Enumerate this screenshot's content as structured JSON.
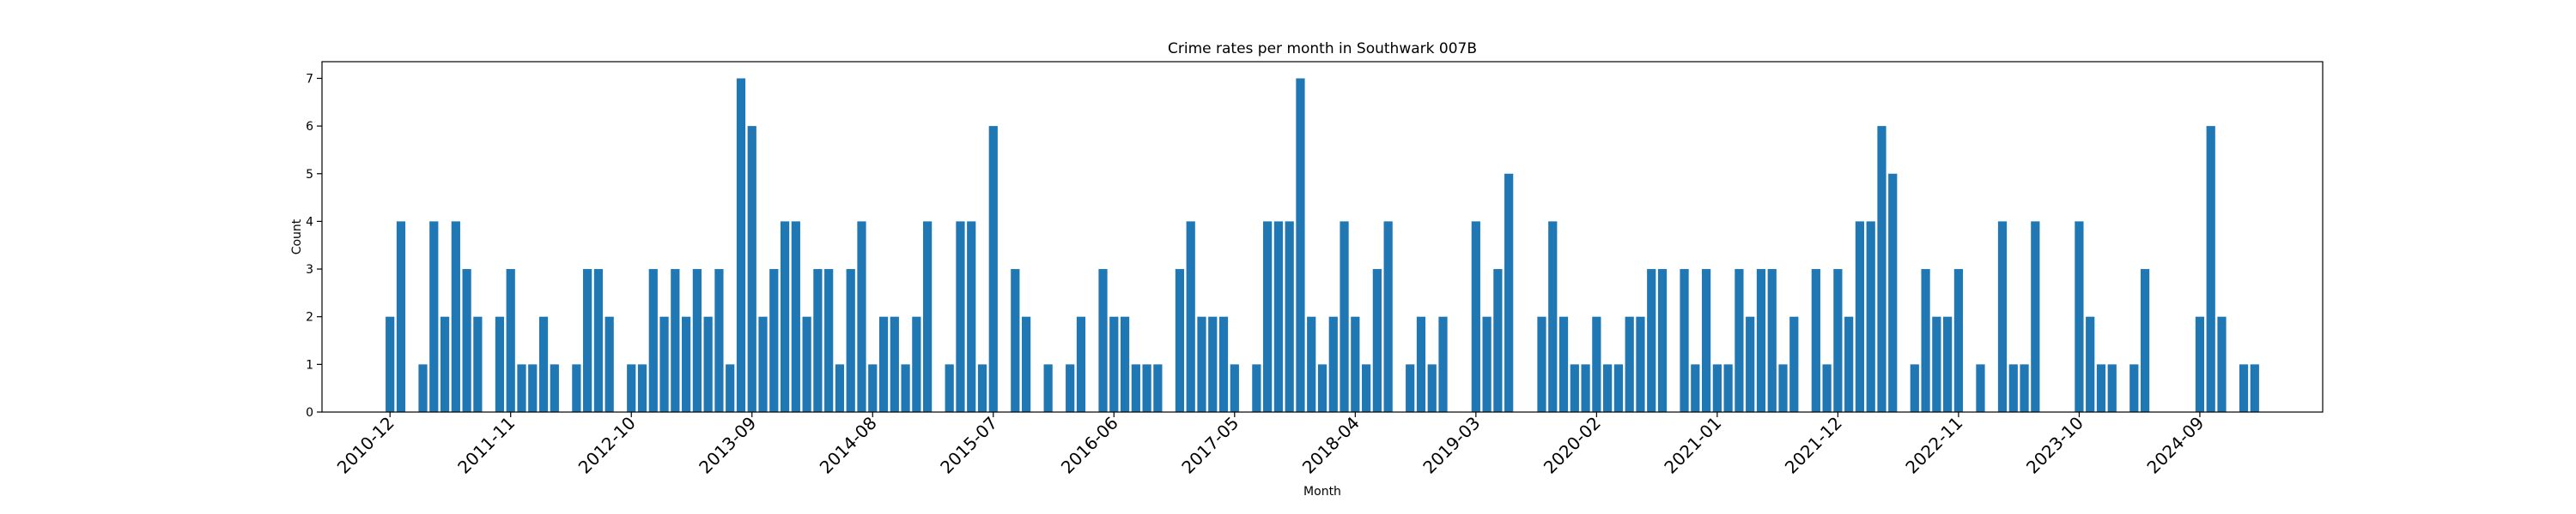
{
  "chart_data": {
    "type": "bar",
    "title": "Crime rates per month in Southwark 007B",
    "xlabel": "Month",
    "ylabel": "Count",
    "ylim": [
      0,
      7.35
    ],
    "y_ticks": [
      0,
      1,
      2,
      3,
      4,
      5,
      6,
      7
    ],
    "x_tick_labels": [
      "2010-12",
      "2011-11",
      "2012-10",
      "2013-09",
      "2014-08",
      "2015-07",
      "2016-06",
      "2017-05",
      "2018-04",
      "2019-03",
      "2020-02",
      "2021-01",
      "2021-12",
      "2022-11",
      "2023-10",
      "2024-09"
    ],
    "x_tick_indices": [
      0,
      11,
      22,
      33,
      44,
      55,
      66,
      77,
      88,
      99,
      110,
      121,
      132,
      143,
      154,
      165
    ],
    "bar_color": "#1f77b4",
    "grid": false,
    "legend": "none",
    "categories": [
      "2010-12",
      "2011-01",
      "2011-02",
      "2011-03",
      "2011-04",
      "2011-05",
      "2011-06",
      "2011-07",
      "2011-08",
      "2011-09",
      "2011-10",
      "2011-11",
      "2011-12",
      "2012-01",
      "2012-02",
      "2012-03",
      "2012-04",
      "2012-05",
      "2012-06",
      "2012-07",
      "2012-08",
      "2012-09",
      "2012-10",
      "2012-11",
      "2012-12",
      "2013-01",
      "2013-02",
      "2013-03",
      "2013-04",
      "2013-05",
      "2013-06",
      "2013-07",
      "2013-08",
      "2013-09",
      "2013-10",
      "2013-11",
      "2013-12",
      "2014-01",
      "2014-02",
      "2014-03",
      "2014-04",
      "2014-05",
      "2014-06",
      "2014-07",
      "2014-08",
      "2014-09",
      "2014-10",
      "2014-11",
      "2014-12",
      "2015-01",
      "2015-02",
      "2015-03",
      "2015-04",
      "2015-05",
      "2015-06",
      "2015-07",
      "2015-08",
      "2015-09",
      "2015-10",
      "2015-11",
      "2015-12",
      "2016-01",
      "2016-02",
      "2016-03",
      "2016-04",
      "2016-05",
      "2016-06",
      "2016-07",
      "2016-08",
      "2016-09",
      "2016-10",
      "2016-11",
      "2016-12",
      "2017-01",
      "2017-02",
      "2017-03",
      "2017-04",
      "2017-05",
      "2017-06",
      "2017-07",
      "2017-08",
      "2017-09",
      "2017-10",
      "2017-11",
      "2017-12",
      "2018-01",
      "2018-02",
      "2018-03",
      "2018-04",
      "2018-05",
      "2018-06",
      "2018-07",
      "2018-08",
      "2018-09",
      "2018-10",
      "2018-11",
      "2018-12",
      "2019-01",
      "2019-02",
      "2019-03",
      "2019-04",
      "2019-05",
      "2019-06",
      "2019-07",
      "2019-08",
      "2019-09",
      "2019-10",
      "2019-11",
      "2019-12",
      "2020-01",
      "2020-02",
      "2020-03",
      "2020-04",
      "2020-05",
      "2020-06",
      "2020-07",
      "2020-08",
      "2020-09",
      "2020-10",
      "2020-11",
      "2020-12",
      "2021-01",
      "2021-02",
      "2021-03",
      "2021-04",
      "2021-05",
      "2021-06",
      "2021-07",
      "2021-08",
      "2021-09",
      "2021-10",
      "2021-11",
      "2021-12",
      "2022-01",
      "2022-02",
      "2022-03",
      "2022-04",
      "2022-05",
      "2022-06",
      "2022-07",
      "2022-08",
      "2022-09",
      "2022-10",
      "2022-11",
      "2022-12",
      "2023-01",
      "2023-02",
      "2023-03",
      "2023-04",
      "2023-05",
      "2023-06",
      "2023-07",
      "2023-08",
      "2023-09",
      "2023-10",
      "2023-11",
      "2023-12",
      "2024-01",
      "2024-02",
      "2024-03",
      "2024-04",
      "2024-05",
      "2024-06",
      "2024-07",
      "2024-08",
      "2024-09",
      "2024-10",
      "2024-11",
      "2024-12",
      "2025-01",
      "2025-02"
    ],
    "values": [
      2,
      4,
      0,
      1,
      4,
      2,
      4,
      3,
      2,
      0,
      2,
      3,
      1,
      1,
      2,
      1,
      0,
      1,
      3,
      3,
      2,
      0,
      1,
      1,
      3,
      2,
      3,
      2,
      3,
      2,
      3,
      1,
      7,
      6,
      2,
      3,
      4,
      4,
      2,
      3,
      3,
      1,
      3,
      4,
      1,
      2,
      2,
      1,
      2,
      4,
      0,
      1,
      4,
      4,
      1,
      6,
      0,
      3,
      2,
      0,
      1,
      0,
      1,
      2,
      0,
      3,
      2,
      2,
      1,
      1,
      1,
      0,
      3,
      4,
      2,
      2,
      2,
      1,
      0,
      1,
      4,
      4,
      4,
      7,
      2,
      1,
      2,
      4,
      2,
      1,
      3,
      4,
      0,
      1,
      2,
      1,
      2,
      0,
      0,
      4,
      2,
      3,
      5,
      0,
      0,
      2,
      4,
      2,
      1,
      1,
      2,
      1,
      1,
      2,
      2,
      3,
      3,
      0,
      3,
      1,
      3,
      1,
      1,
      3,
      2,
      3,
      3,
      1,
      2,
      0,
      3,
      1,
      3,
      2,
      4,
      4,
      6,
      5,
      0,
      1,
      3,
      2,
      2,
      3,
      0,
      1,
      0,
      4,
      1,
      1,
      4,
      0,
      0,
      0,
      4,
      2,
      1,
      1,
      0,
      1,
      3,
      0,
      0,
      0,
      0,
      2,
      6,
      2,
      0,
      1,
      1
    ]
  }
}
